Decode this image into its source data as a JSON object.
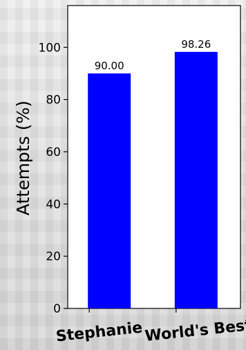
{
  "chart_data": {
    "type": "bar",
    "title": "",
    "xlabel": "",
    "ylabel": "Attempts (%)",
    "categories": [
      "Stephanie",
      "World's Best"
    ],
    "values": [
      90.0,
      98.26
    ],
    "data_labels": [
      "90.00",
      "98.26"
    ],
    "ylim": [
      0,
      116
    ],
    "yticks": [
      0,
      20,
      40,
      60,
      80,
      100
    ],
    "ytick_labels": [
      "0",
      "20",
      "40",
      "60",
      "80",
      "100"
    ],
    "grid": false,
    "bar_color": "#0000ff"
  }
}
